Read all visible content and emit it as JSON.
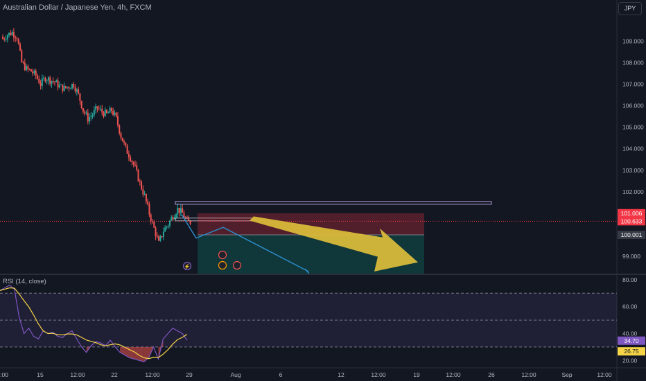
{
  "header": {
    "title": "Australian Dollar / Japanese Yen, 4h, FXCM",
    "currency_button": "JPY"
  },
  "rsi_panel": {
    "title": "RSI (14, close)"
  },
  "colors": {
    "background": "#131722",
    "up": "#26a69a",
    "down": "#ef5350",
    "rsi_line": "#7e57c2",
    "rsi_ma": "#f5d547",
    "arrow": "#d9b93a",
    "projection": "#2b8ac6"
  },
  "icons": [
    "lightning-icon",
    "flag-icon",
    "event-icon"
  ],
  "chart_data": [
    {
      "type": "candlestick",
      "title": "Australian Dollar / Japanese Yen, 4h, FXCM",
      "x_ticks": [
        ":00",
        "15",
        "12:00",
        "22",
        "12:00",
        "29",
        "Aug",
        "6",
        "12",
        "12:00",
        "19",
        "12:00",
        "26",
        "12:00",
        "Sep",
        "12:00"
      ],
      "y_ticks": [
        109.0,
        108.0,
        107.0,
        106.0,
        105.0,
        104.0,
        103.0,
        102.0,
        101.0,
        100.0,
        99.0
      ],
      "ylim": [
        98.2,
        110.2
      ],
      "price_labels": [
        {
          "label": "101.006",
          "value": 101.006,
          "color": "#f23645"
        },
        {
          "label": "100.633",
          "value": 100.633,
          "color": "#f23645"
        },
        {
          "label": "100.001",
          "value": 100.001,
          "color": "#363a45"
        }
      ],
      "close_path": [
        109.1,
        109.3,
        109.4,
        109.2,
        108.0,
        107.7,
        107.6,
        107.4,
        107.0,
        107.3,
        107.2,
        107.1,
        106.9,
        106.8,
        106.9,
        107.0,
        106.5,
        105.8,
        105.4,
        105.6,
        105.9,
        105.7,
        105.6,
        105.8,
        105.4,
        104.6,
        104.0,
        103.6,
        103.1,
        102.4,
        101.8,
        101.0,
        100.3,
        99.6,
        100.2,
        100.5,
        100.9,
        101.2,
        101.0,
        100.6
      ]
    },
    {
      "type": "line",
      "title": "RSI (14, close)",
      "y_ticks": [
        80.0,
        60.0,
        40.0,
        20.0
      ],
      "ylim": [
        15,
        82
      ],
      "levels": [
        70,
        30,
        50
      ],
      "value_labels": [
        {
          "label": "34.70",
          "value": 34.7,
          "color": "#7e57c2"
        },
        {
          "label": "26.75",
          "value": 26.75,
          "color": "#f5d547"
        }
      ]
    }
  ]
}
